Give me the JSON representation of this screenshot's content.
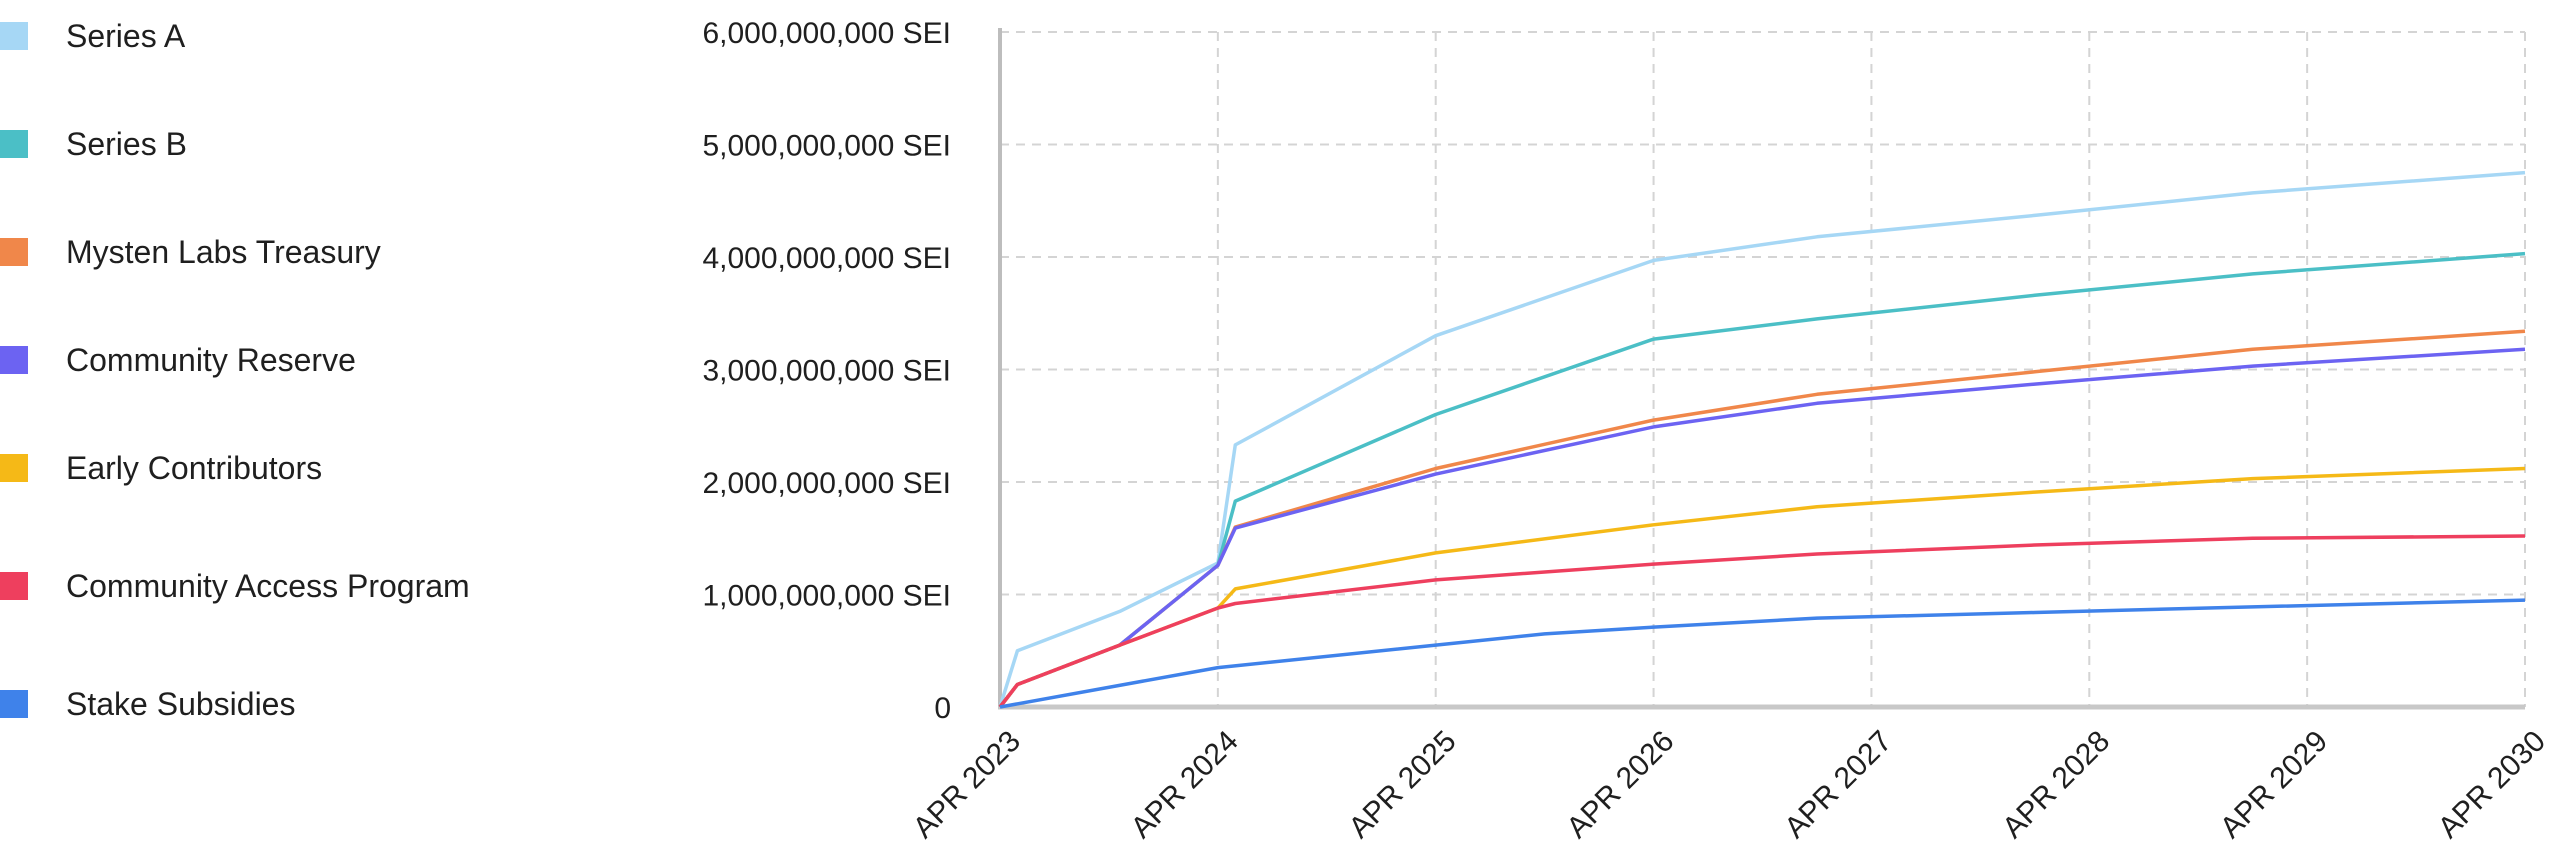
{
  "chart_data": {
    "type": "area",
    "title": "",
    "xlabel": "",
    "ylabel": "",
    "x_ticks": [
      "APR 2023",
      "APR 2024",
      "APR 2025",
      "APR 2026",
      "APR 2027",
      "APR 2028",
      "APR 2029",
      "APR 2030"
    ],
    "y_ticks": [
      "0",
      "1,000,000,000 SEI",
      "2,000,000,000 SEI",
      "3,000,000,000 SEI",
      "4,000,000,000 SEI",
      "5,000,000,000 SEI",
      "6,000,000,000 SEI"
    ],
    "ylim": [
      0,
      6000000000
    ],
    "xlim": [
      2023.25,
      2030.25
    ],
    "grid": true,
    "legend_position": "left",
    "stacked": true,
    "series": [
      {
        "name": "Series A",
        "color": "#a6d7f5",
        "points": [
          [
            2023.25,
            0
          ],
          [
            2023.33,
            500000000
          ],
          [
            2023.8,
            850000000
          ],
          [
            2024.25,
            1280000000
          ],
          [
            2024.33,
            2330000000
          ],
          [
            2025.25,
            3300000000
          ],
          [
            2026.25,
            3970000000
          ],
          [
            2027.0,
            4180000000
          ],
          [
            2028.0,
            4370000000
          ],
          [
            2029.0,
            4570000000
          ],
          [
            2030.25,
            4750000000
          ]
        ]
      },
      {
        "name": "Series B",
        "color": "#4bbfc6",
        "points": [
          [
            2023.25,
            0
          ],
          [
            2023.33,
            200000000
          ],
          [
            2023.8,
            550000000
          ],
          [
            2024.25,
            1260000000
          ],
          [
            2024.33,
            1830000000
          ],
          [
            2025.25,
            2600000000
          ],
          [
            2026.25,
            3270000000
          ],
          [
            2027.0,
            3450000000
          ],
          [
            2028.0,
            3660000000
          ],
          [
            2029.0,
            3850000000
          ],
          [
            2030.25,
            4030000000
          ]
        ]
      },
      {
        "name": "Mysten Labs Treasury",
        "color": "#f0874a",
        "points": [
          [
            2023.25,
            0
          ],
          [
            2023.33,
            200000000
          ],
          [
            2023.8,
            550000000
          ],
          [
            2024.25,
            1260000000
          ],
          [
            2024.33,
            1600000000
          ],
          [
            2025.25,
            2120000000
          ],
          [
            2026.25,
            2550000000
          ],
          [
            2027.0,
            2780000000
          ],
          [
            2028.0,
            2980000000
          ],
          [
            2029.0,
            3180000000
          ],
          [
            2030.25,
            3340000000
          ]
        ]
      },
      {
        "name": "Community Reserve",
        "color": "#6c63f2",
        "points": [
          [
            2023.25,
            0
          ],
          [
            2023.33,
            200000000
          ],
          [
            2023.8,
            550000000
          ],
          [
            2024.25,
            1260000000
          ],
          [
            2024.33,
            1590000000
          ],
          [
            2025.25,
            2070000000
          ],
          [
            2026.25,
            2490000000
          ],
          [
            2027.0,
            2700000000
          ],
          [
            2028.0,
            2870000000
          ],
          [
            2029.0,
            3030000000
          ],
          [
            2030.25,
            3180000000
          ]
        ]
      },
      {
        "name": "Early Contributors",
        "color": "#f5b917",
        "points": [
          [
            2023.25,
            0
          ],
          [
            2023.33,
            200000000
          ],
          [
            2023.8,
            550000000
          ],
          [
            2024.25,
            880000000
          ],
          [
            2024.33,
            1050000000
          ],
          [
            2025.25,
            1370000000
          ],
          [
            2026.25,
            1620000000
          ],
          [
            2027.0,
            1780000000
          ],
          [
            2028.0,
            1910000000
          ],
          [
            2029.0,
            2030000000
          ],
          [
            2030.25,
            2120000000
          ]
        ]
      },
      {
        "name": "Community Access Program",
        "color": "#ee3f5e",
        "points": [
          [
            2023.25,
            0
          ],
          [
            2023.33,
            200000000
          ],
          [
            2023.8,
            550000000
          ],
          [
            2024.25,
            880000000
          ],
          [
            2024.33,
            920000000
          ],
          [
            2025.25,
            1130000000
          ],
          [
            2026.25,
            1270000000
          ],
          [
            2027.0,
            1360000000
          ],
          [
            2028.0,
            1440000000
          ],
          [
            2029.0,
            1500000000
          ],
          [
            2030.25,
            1520000000
          ]
        ]
      },
      {
        "name": "Stake Subsidies",
        "color": "#3f82ea",
        "points": [
          [
            2023.25,
            0
          ],
          [
            2024.25,
            350000000
          ],
          [
            2025.25,
            550000000
          ],
          [
            2025.75,
            650000000
          ],
          [
            2026.25,
            710000000
          ],
          [
            2027.0,
            790000000
          ],
          [
            2028.0,
            840000000
          ],
          [
            2029.0,
            890000000
          ],
          [
            2030.25,
            950000000
          ]
        ]
      }
    ]
  },
  "legend": {
    "items": [
      {
        "label": "Series A",
        "color": "#a6d7f5"
      },
      {
        "label": "Series B",
        "color": "#4bbfc6"
      },
      {
        "label": "Mysten Labs Treasury",
        "color": "#f0874a"
      },
      {
        "label": "Community Reserve",
        "color": "#6c63f2"
      },
      {
        "label": "Early Contributors",
        "color": "#f5b917"
      },
      {
        "label": "Community Access Program",
        "color": "#ee3f5e"
      },
      {
        "label": "Stake Subsidies",
        "color": "#3f82ea"
      }
    ]
  }
}
